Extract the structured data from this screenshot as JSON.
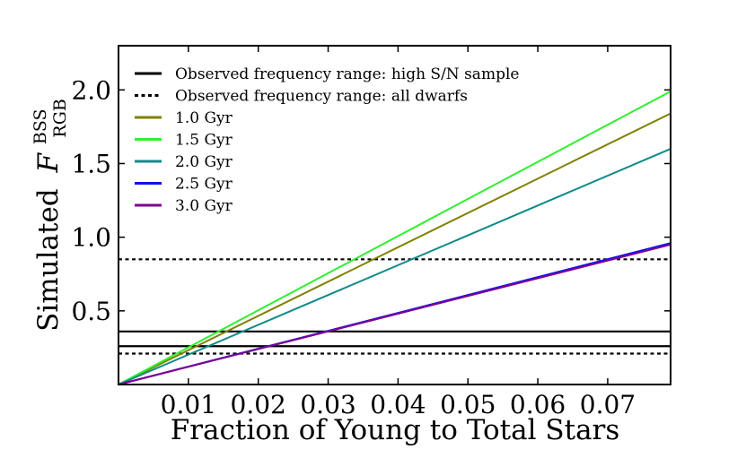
{
  "chart_data": {
    "type": "line",
    "title": "",
    "xlabel": "Fraction of Young to Total Stars",
    "ylabel": "Simulated",
    "ylabel_symbol": "F",
    "ylabel_superscript": "BSS",
    "ylabel_subscript": "RGB",
    "xlim": [
      0.0,
      0.079
    ],
    "ylim": [
      0.0,
      2.3
    ],
    "xticks": [
      0.01,
      0.02,
      0.03,
      0.04,
      0.05,
      0.06,
      0.07
    ],
    "xtick_labels": [
      "0.01",
      "0.02",
      "0.03",
      "0.04",
      "0.05",
      "0.06",
      "0.07"
    ],
    "yticks": [
      0.5,
      1.0,
      1.5,
      2.0
    ],
    "ytick_labels": [
      "0.5",
      "1.0",
      "1.5",
      "2.0"
    ],
    "legend_position": "top-left",
    "series": [
      {
        "name": "1.0 Gyr",
        "color": "#808000",
        "x": [
          0.0,
          0.079
        ],
        "y": [
          0.0,
          1.84
        ]
      },
      {
        "name": "1.5 Gyr",
        "color": "#2ef02e",
        "x": [
          0.0,
          0.079
        ],
        "y": [
          0.0,
          1.99
        ]
      },
      {
        "name": "2.0 Gyr",
        "color": "#108a8a",
        "x": [
          0.0,
          0.079
        ],
        "y": [
          0.0,
          1.6
        ]
      },
      {
        "name": "2.5 Gyr",
        "color": "#1010f0",
        "x": [
          0.0,
          0.079
        ],
        "y": [
          0.0,
          0.96
        ]
      },
      {
        "name": "3.0 Gyr",
        "color": "#800090",
        "x": [
          0.0,
          0.079
        ],
        "y": [
          0.0,
          0.95
        ]
      }
    ],
    "reference_lines": [
      {
        "name": "Observed frequency range: high S/N sample",
        "style": "solid",
        "color": "#000000",
        "y": [
          0.26,
          0.36
        ]
      },
      {
        "name": "Observed frequency range: all dwarfs",
        "style": "dotted",
        "color": "#000000",
        "y": [
          0.21,
          0.85
        ]
      }
    ]
  }
}
